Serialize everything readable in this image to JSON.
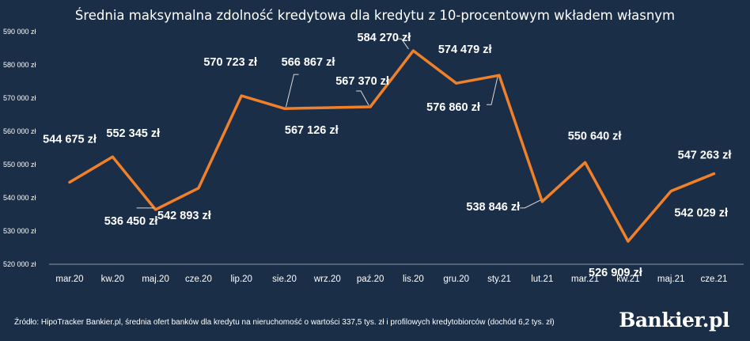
{
  "chart_data": {
    "type": "line",
    "title": "Średnia maksymalna zdolność kredytowa dla kredytu z 10-procentowym wkładem własnym",
    "categories": [
      "mar.20",
      "kw.20",
      "maj.20",
      "cze.20",
      "lip.20",
      "sie.20",
      "wrz.20",
      "paź.20",
      "lis.20",
      "gru.20",
      "sty.21",
      "lut.21",
      "mar.21",
      "kw.21",
      "maj.21",
      "cze.21"
    ],
    "values": [
      544675,
      552345,
      536450,
      542893,
      570723,
      566867,
      567126,
      567370,
      584270,
      574479,
      576860,
      538846,
      550640,
      526909,
      542029,
      547263
    ],
    "data_labels": [
      "544 675 zł",
      "552 345 zł",
      "536 450 zł",
      "542 893 zł",
      "570 723 zł",
      "566 867 zł",
      "567 126 zł",
      "567 370 zł",
      "584 270 zł",
      "574 479 zł",
      "576 860 zł",
      "538 846 zł",
      "550 640 zł",
      "526 909 zł",
      "542 029 zł",
      "547 263 zł"
    ],
    "ylim": [
      520000,
      590000
    ],
    "yticks": [
      520000,
      530000,
      540000,
      550000,
      560000,
      570000,
      580000,
      590000
    ],
    "ytick_labels": [
      "520 000 zł",
      "530 000 zł",
      "540 000 zł",
      "550 000 zł",
      "560 000 zł",
      "570 000 zł",
      "580 000 zł",
      "590 000 zł"
    ],
    "xlabel": "",
    "ylabel": "",
    "grid": false,
    "legend": "none",
    "line_color": "#f0802a",
    "background_color": "#1b2e48"
  },
  "footer": {
    "source": "Źródło: HipoTracker Bankier.pl, średnia ofert banków dla kredytu na nieruchomość o wartości 337,5 tys. zł i profilowych kredytobiorców (dochód 6,2 tys. zł)",
    "logo": "Bankier.pl"
  }
}
